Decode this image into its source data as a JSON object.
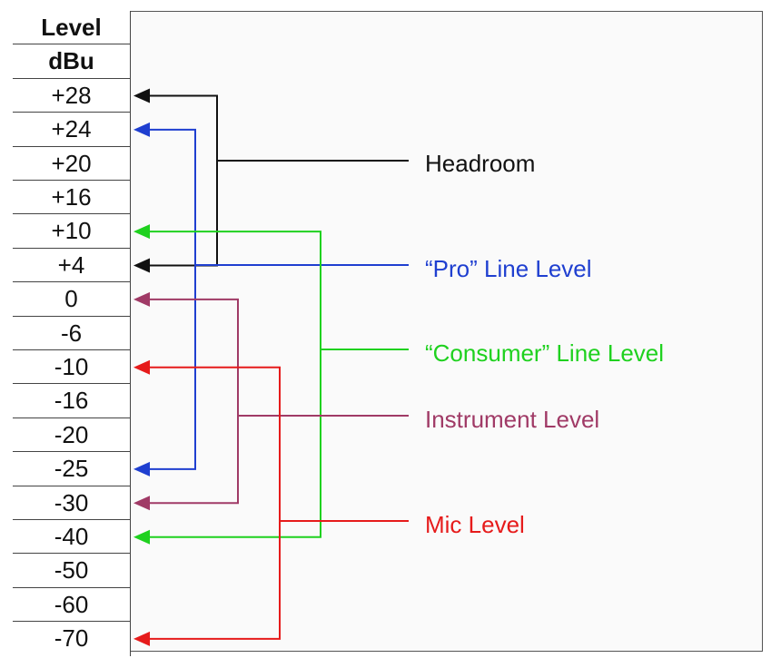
{
  "table": {
    "header": [
      "Level",
      "dBu"
    ],
    "levels": [
      "+28",
      "+24",
      "+20",
      "+16",
      "+10",
      "+4",
      "0",
      "-6",
      "-10",
      "-16",
      "-20",
      "-25",
      "-30",
      "-40",
      "-50",
      "-60",
      "-70"
    ]
  },
  "ranges": [
    {
      "name": "Headroom",
      "label": "Headroom",
      "color": "#111111",
      "from": "+28",
      "to": "+4"
    },
    {
      "name": "pro-line-level",
      "label": "“Pro” Line Level",
      "color": "#1f3fd0",
      "from": "+24",
      "to": "-25"
    },
    {
      "name": "consumer-line-level",
      "label": "“Consumer” Line Level",
      "color": "#1fd11f",
      "from": "+10",
      "to": "-40"
    },
    {
      "name": "instrument-level",
      "label": "Instrument Level",
      "color": "#a03a66",
      "from": "0",
      "to": "-30"
    },
    {
      "name": "mic-level",
      "label": "Mic Level",
      "color": "#e61b1b",
      "from": "-10",
      "to": "-70"
    }
  ]
}
